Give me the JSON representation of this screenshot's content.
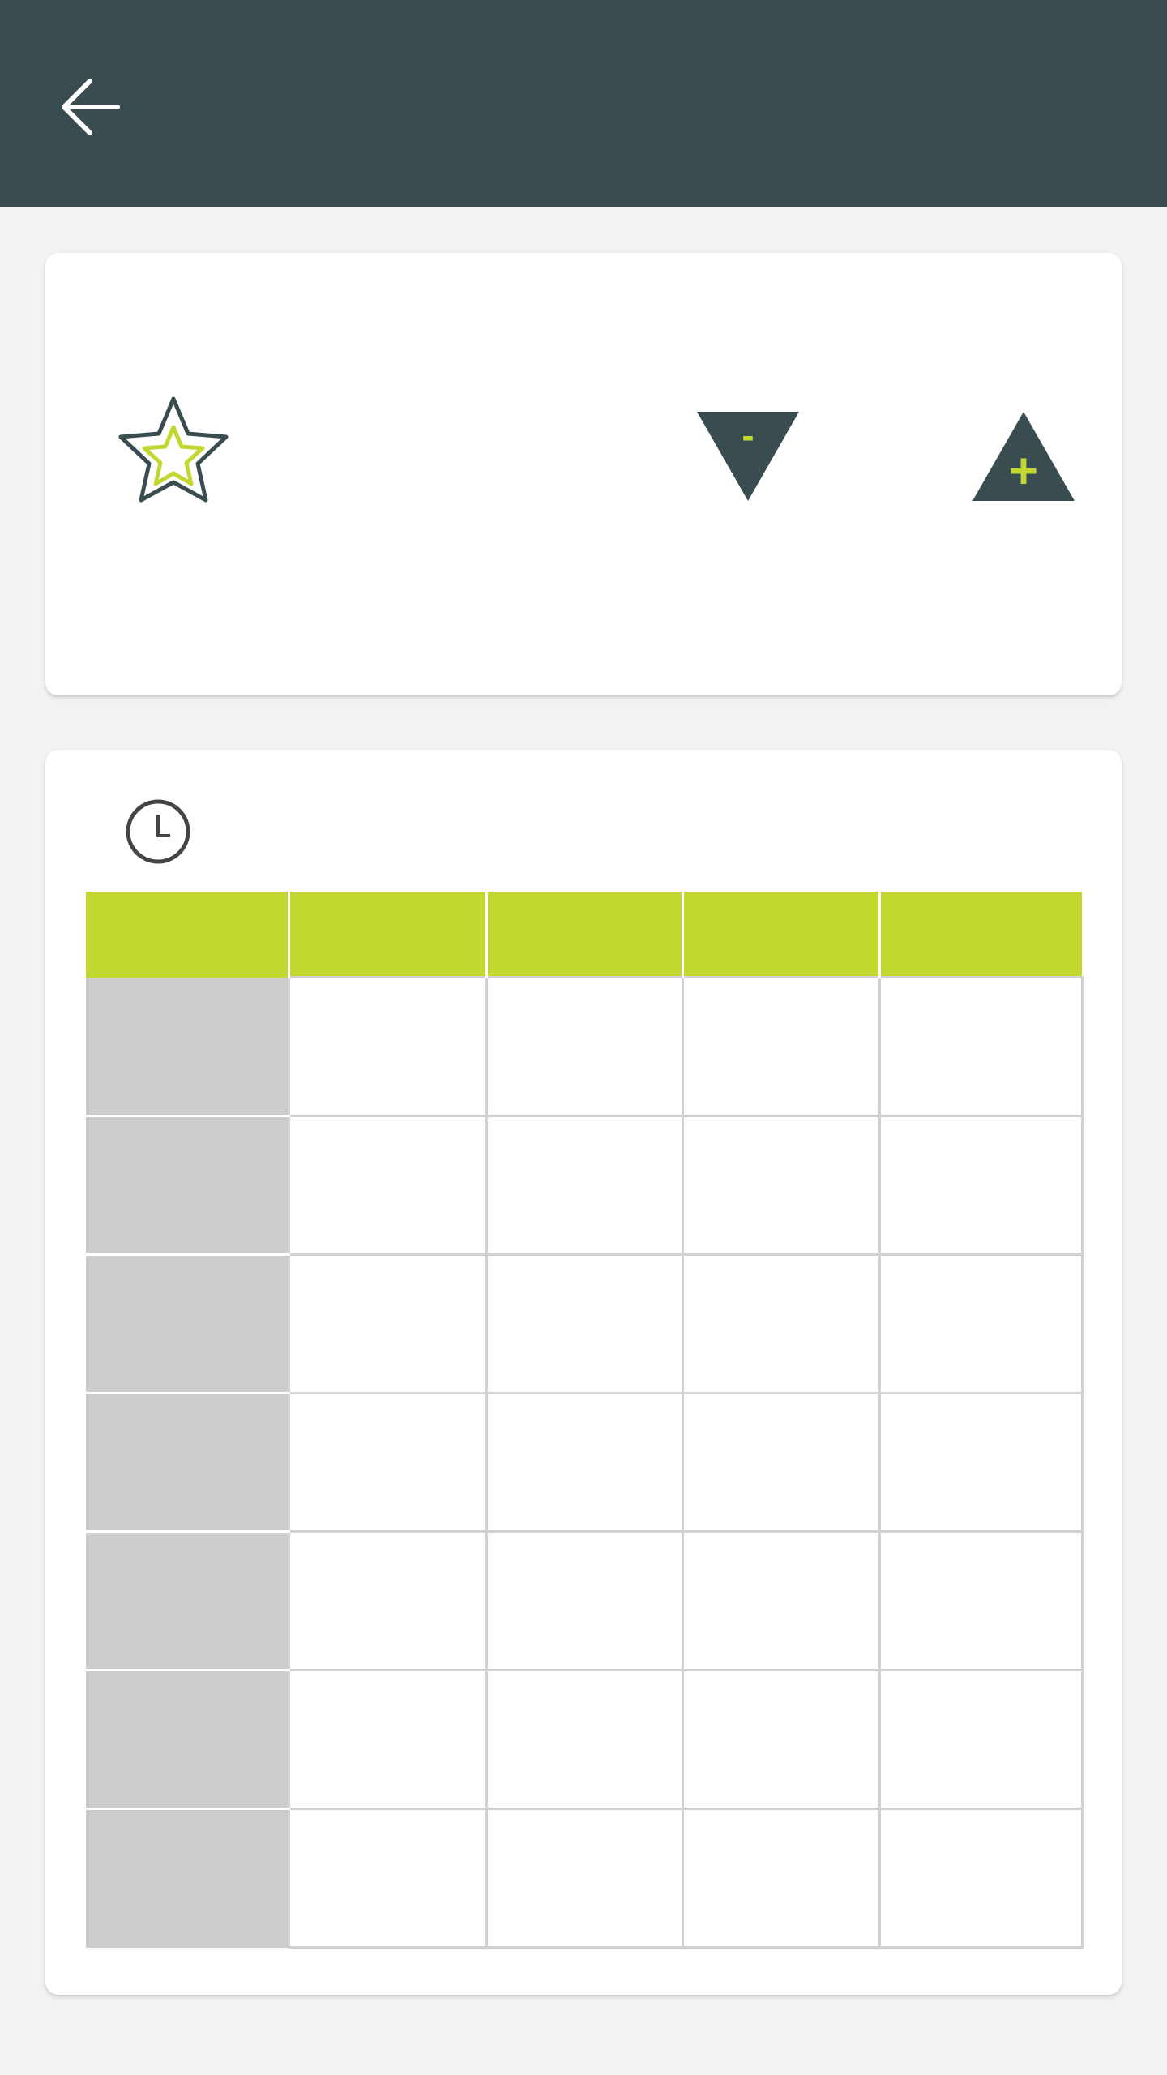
{
  "theme": {
    "appbar_color": "#394c50",
    "accent_color": "#c2d72f",
    "background_color": "#f2f2f2",
    "row_header_color": "#cccccc"
  },
  "header": {
    "back_icon": "arrow-left-icon"
  },
  "control_card": {
    "icon": "star-icon",
    "decrease_label": "-",
    "increase_label": "+"
  },
  "schedule_card": {
    "icon": "clock-icon",
    "columns": [
      "",
      "",
      "",
      "",
      ""
    ],
    "rows": [
      [
        "",
        "",
        "",
        "",
        ""
      ],
      [
        "",
        "",
        "",
        "",
        ""
      ],
      [
        "",
        "",
        "",
        "",
        ""
      ],
      [
        "",
        "",
        "",
        "",
        ""
      ],
      [
        "",
        "",
        "",
        "",
        ""
      ],
      [
        "",
        "",
        "",
        "",
        ""
      ],
      [
        "",
        "",
        "",
        "",
        ""
      ]
    ]
  }
}
